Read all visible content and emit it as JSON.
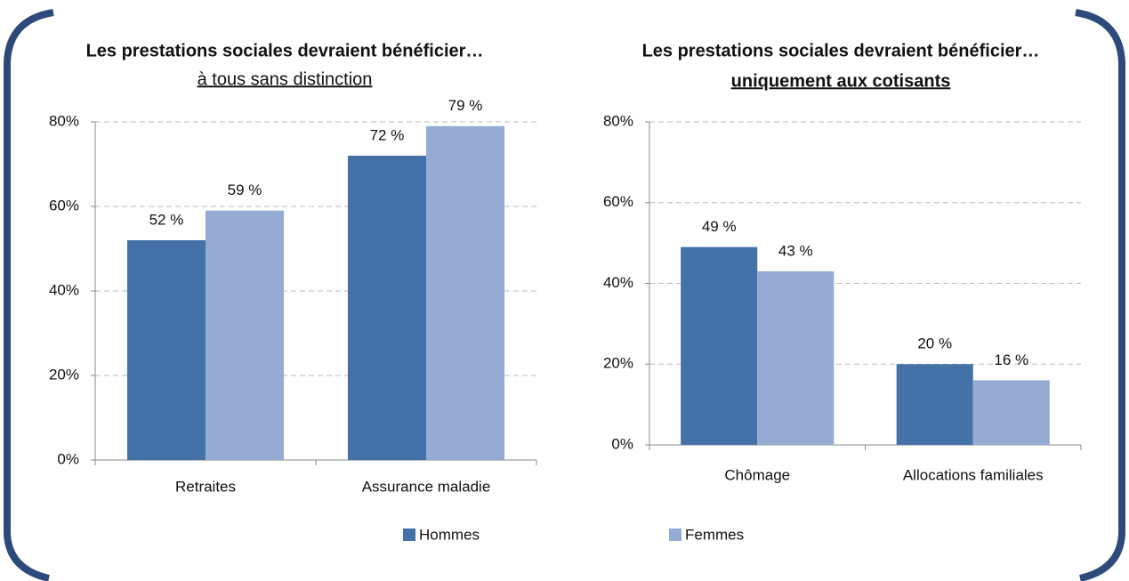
{
  "chart_data": [
    {
      "type": "bar",
      "title": "Les prestations sociales devraient bénéficier…",
      "subtitle": "à tous sans distinction",
      "categories": [
        "Retraites",
        "Assurance maladie"
      ],
      "series": [
        {
          "name": "Hommes",
          "color": "#4472a8",
          "values": [
            52,
            72
          ],
          "value_labels": [
            "52 %",
            "72 %"
          ]
        },
        {
          "name": "Femmes",
          "color": "#95abd3",
          "values": [
            59,
            79
          ],
          "value_labels": [
            "59 %",
            "79 %"
          ]
        }
      ],
      "ylim": [
        0,
        80
      ],
      "yticks": [
        {
          "value": 0,
          "label": "0%"
        },
        {
          "value": 20,
          "label": "20%"
        },
        {
          "value": 40,
          "label": "40%"
        },
        {
          "value": 60,
          "label": "60%"
        },
        {
          "value": 80,
          "label": "80%"
        }
      ],
      "grid": true
    },
    {
      "type": "bar",
      "title": "Les prestations sociales devraient bénéficier…",
      "subtitle": "uniquement aux cotisants",
      "categories": [
        "Chômage",
        "Allocations familiales"
      ],
      "series": [
        {
          "name": "Hommes",
          "color": "#4472a8",
          "values": [
            49,
            20
          ],
          "value_labels": [
            "49 %",
            "20 %"
          ]
        },
        {
          "name": "Femmes",
          "color": "#95abd3",
          "values": [
            43,
            16
          ],
          "value_labels": [
            "43 %",
            "16 %"
          ]
        }
      ],
      "ylim": [
        0,
        80
      ],
      "yticks": [
        {
          "value": 0,
          "label": "0%"
        },
        {
          "value": 20,
          "label": "20%"
        },
        {
          "value": 40,
          "label": "40%"
        },
        {
          "value": 60,
          "label": "60%"
        },
        {
          "value": 80,
          "label": "80%"
        }
      ],
      "grid": true
    }
  ]
}
